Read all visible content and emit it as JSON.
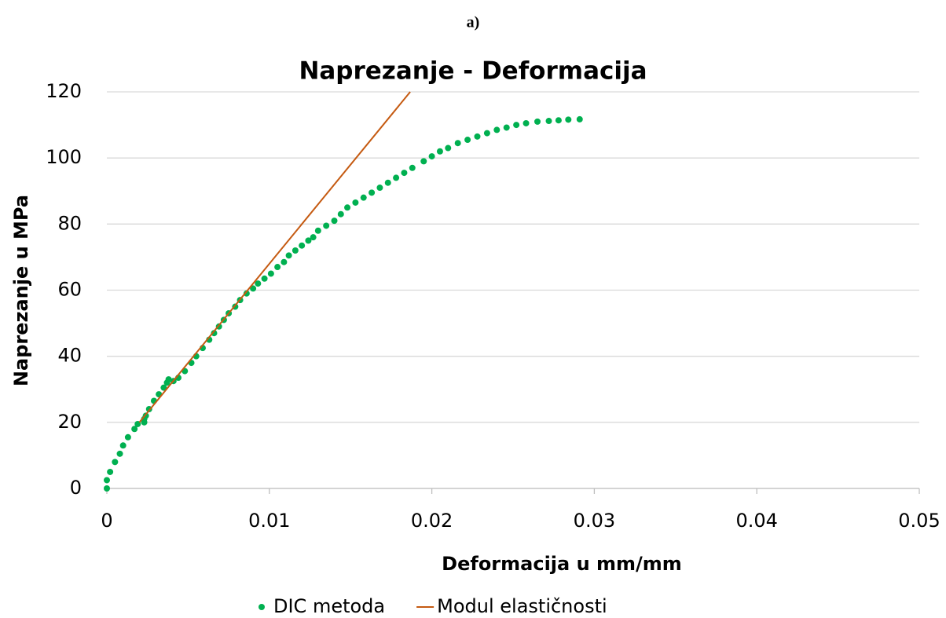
{
  "header": "a)",
  "chart_data": {
    "type": "scatter",
    "title": "Naprezanje - Deformacija",
    "xlabel": "Deformacija u mm/mm",
    "ylabel": "Naprezanje u MPa",
    "xlim": [
      0,
      0.05
    ],
    "xticks": [
      0,
      0.01,
      0.02,
      0.03,
      0.04,
      0.05
    ],
    "ylim": [
      0,
      120
    ],
    "yticks": [
      0,
      20,
      40,
      60,
      80,
      100,
      120
    ],
    "grid": true,
    "legend": "bottom",
    "series": [
      {
        "name": "DIC metoda",
        "color": "#00b050",
        "style": "markers",
        "x": [
          0,
          0,
          0.0002,
          0.0005,
          0.0008,
          0.001,
          0.0013,
          0.0017,
          0.0019,
          0.0023,
          0.0023,
          0.0024,
          0.0026,
          0.0029,
          0.0032,
          0.0035,
          0.0037,
          0.0038,
          0.0041,
          0.0044,
          0.0048,
          0.0052,
          0.0055,
          0.0059,
          0.0063,
          0.0066,
          0.0069,
          0.0072,
          0.0075,
          0.0079,
          0.0082,
          0.0086,
          0.009,
          0.0093,
          0.0097,
          0.0101,
          0.0105,
          0.0109,
          0.0112,
          0.0116,
          0.012,
          0.0124,
          0.0127,
          0.013,
          0.0135,
          0.014,
          0.0144,
          0.0148,
          0.0153,
          0.0158,
          0.0163,
          0.0168,
          0.0173,
          0.0178,
          0.0183,
          0.0188,
          0.0195,
          0.02,
          0.0205,
          0.021,
          0.0216,
          0.0222,
          0.0228,
          0.0234,
          0.024,
          0.0246,
          0.0252,
          0.0258,
          0.0265,
          0.0272,
          0.0278,
          0.0284,
          0.0291
        ],
        "values": [
          0,
          2.5,
          5,
          8,
          10.5,
          13,
          15.5,
          18,
          19.5,
          20,
          21,
          22,
          24,
          26.5,
          28.5,
          30.5,
          32,
          33,
          32.5,
          33.5,
          35.5,
          38,
          40,
          42.5,
          45,
          47,
          49,
          51,
          53,
          55,
          57,
          59,
          60.5,
          62,
          63.5,
          65,
          67,
          68.5,
          70.5,
          72,
          73.5,
          75,
          76,
          78,
          79.5,
          81,
          83,
          85,
          86.5,
          88,
          89.5,
          91,
          92.5,
          94,
          95.5,
          97,
          99,
          100.5,
          102,
          103,
          104.5,
          105.5,
          106.5,
          107.5,
          108.5,
          109.2,
          110,
          110.5,
          111,
          111.2,
          111.4,
          111.6,
          111.7
        ]
      },
      {
        "name": "Modul elastičnosti",
        "color": "#c55a11",
        "style": "line",
        "x": [
          0.002,
          0.01867
        ],
        "values": [
          20,
          120
        ]
      }
    ]
  }
}
